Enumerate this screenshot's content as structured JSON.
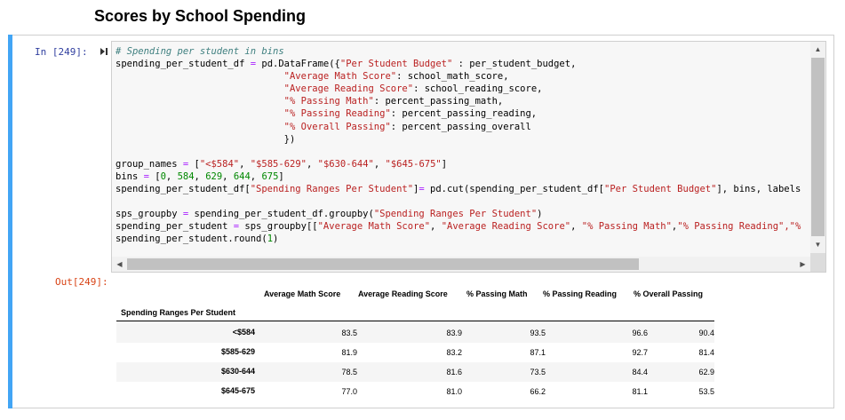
{
  "heading": "Scores by School Spending",
  "input_prompt": "In [249]:",
  "output_prompt": "Out[249]:",
  "code_lines": [
    [
      {
        "t": "# Spending per student in bins",
        "c": "cm"
      }
    ],
    [
      {
        "t": "spending_per_student_df "
      },
      {
        "t": "=",
        "c": "op"
      },
      {
        "t": " pd.DataFrame({"
      },
      {
        "t": "\"Per Student Budget\"",
        "c": "st"
      },
      {
        "t": " : per_student_budget,"
      }
    ],
    [
      {
        "t": "                              "
      },
      {
        "t": "\"Average Math Score\"",
        "c": "st"
      },
      {
        "t": ": school_math_score,"
      }
    ],
    [
      {
        "t": "                              "
      },
      {
        "t": "\"Average Reading Score\"",
        "c": "st"
      },
      {
        "t": ": school_reading_score,"
      }
    ],
    [
      {
        "t": "                              "
      },
      {
        "t": "\"% Passing Math\"",
        "c": "st"
      },
      {
        "t": ": percent_passing_math,"
      }
    ],
    [
      {
        "t": "                              "
      },
      {
        "t": "\"% Passing Reading\"",
        "c": "st"
      },
      {
        "t": ": percent_passing_reading,"
      }
    ],
    [
      {
        "t": "                              "
      },
      {
        "t": "\"% Overall Passing\"",
        "c": "st"
      },
      {
        "t": ": percent_passing_overall"
      }
    ],
    [
      {
        "t": "                              })"
      }
    ],
    [],
    [
      {
        "t": "group_names "
      },
      {
        "t": "=",
        "c": "op"
      },
      {
        "t": " ["
      },
      {
        "t": "\"<$584\"",
        "c": "st"
      },
      {
        "t": ", "
      },
      {
        "t": "\"$585-629\"",
        "c": "st"
      },
      {
        "t": ", "
      },
      {
        "t": "\"$630-644\"",
        "c": "st"
      },
      {
        "t": ", "
      },
      {
        "t": "\"$645-675\"",
        "c": "st"
      },
      {
        "t": "]"
      }
    ],
    [
      {
        "t": "bins "
      },
      {
        "t": "=",
        "c": "op"
      },
      {
        "t": " ["
      },
      {
        "t": "0",
        "c": "nu"
      },
      {
        "t": ", "
      },
      {
        "t": "584",
        "c": "nu"
      },
      {
        "t": ", "
      },
      {
        "t": "629",
        "c": "nu"
      },
      {
        "t": ", "
      },
      {
        "t": "644",
        "c": "nu"
      },
      {
        "t": ", "
      },
      {
        "t": "675",
        "c": "nu"
      },
      {
        "t": "]"
      }
    ],
    [
      {
        "t": "spending_per_student_df["
      },
      {
        "t": "\"Spending Ranges Per Student\"",
        "c": "st"
      },
      {
        "t": "]"
      },
      {
        "t": "=",
        "c": "op"
      },
      {
        "t": " pd.cut(spending_per_student_df["
      },
      {
        "t": "\"Per Student Budget\"",
        "c": "st"
      },
      {
        "t": "], bins, labels"
      }
    ],
    [],
    [
      {
        "t": "sps_groupby "
      },
      {
        "t": "=",
        "c": "op"
      },
      {
        "t": " spending_per_student_df.groupby("
      },
      {
        "t": "\"Spending Ranges Per Student\"",
        "c": "st"
      },
      {
        "t": ")"
      }
    ],
    [
      {
        "t": "spending_per_student "
      },
      {
        "t": "=",
        "c": "op"
      },
      {
        "t": " sps_groupby[["
      },
      {
        "t": "\"Average Math Score\"",
        "c": "st"
      },
      {
        "t": ", "
      },
      {
        "t": "\"Average Reading Score\"",
        "c": "st"
      },
      {
        "t": ", "
      },
      {
        "t": "\"% Passing Math\"",
        "c": "st"
      },
      {
        "t": ","
      },
      {
        "t": "\"% Passing Reading\"",
        "c": "st"
      },
      {
        "t": ",\"%",
        "c": "st"
      }
    ],
    [
      {
        "t": "spending_per_student.round("
      },
      {
        "t": "1",
        "c": "nu"
      },
      {
        "t": ")"
      }
    ]
  ],
  "table": {
    "index_name": "Spending Ranges Per Student",
    "columns": [
      "Average Math Score",
      "Average Reading Score",
      "% Passing Math",
      "% Passing Reading",
      "% Overall Passing"
    ],
    "rows": [
      {
        "index": "<$584",
        "values": [
          "83.5",
          "83.9",
          "93.5",
          "96.6",
          "90.4"
        ]
      },
      {
        "index": "$585-629",
        "values": [
          "81.9",
          "83.2",
          "87.1",
          "92.7",
          "81.4"
        ]
      },
      {
        "index": "$630-644",
        "values": [
          "78.5",
          "81.6",
          "73.5",
          "84.4",
          "62.9"
        ]
      },
      {
        "index": "$645-675",
        "values": [
          "77.0",
          "81.0",
          "66.2",
          "81.1",
          "53.5"
        ]
      }
    ]
  },
  "colors": {
    "cell_bar": "#42a5f5",
    "input_prompt": "#303f9f",
    "output_prompt": "#d84315"
  }
}
